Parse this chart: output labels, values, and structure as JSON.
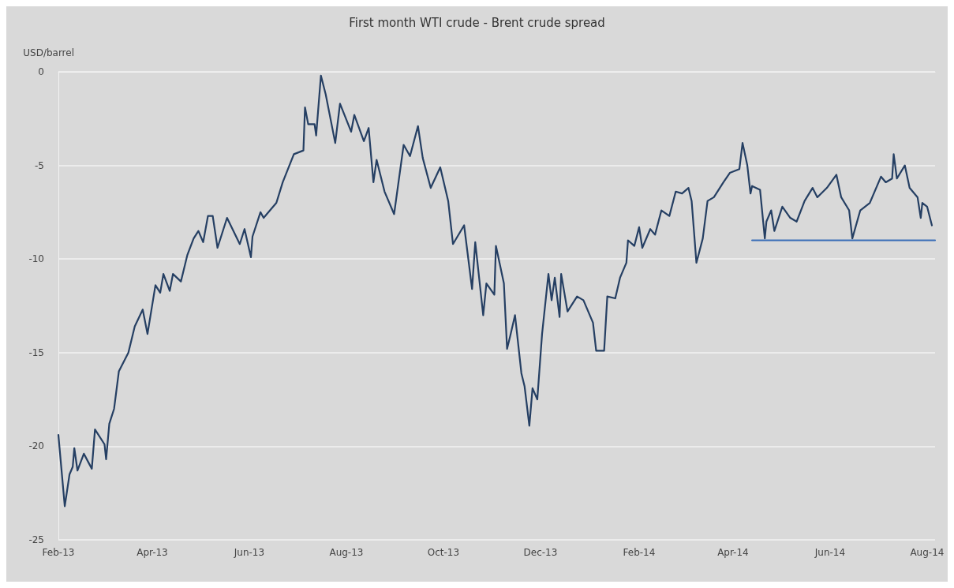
{
  "chart_data": {
    "type": "line",
    "title": "First month WTI crude - Brent crude spread",
    "ylabel": "USD/barrel",
    "xlim": [
      "2013-02-01",
      "2014-08-06"
    ],
    "xticks": [
      {
        "value": "2013-02-01",
        "label": "Feb-13"
      },
      {
        "value": "2013-04-01",
        "label": "Apr-13"
      },
      {
        "value": "2013-06-01",
        "label": "Jun-13"
      },
      {
        "value": "2013-08-01",
        "label": "Aug-13"
      },
      {
        "value": "2013-10-01",
        "label": "Oct-13"
      },
      {
        "value": "2013-12-01",
        "label": "Dec-13"
      },
      {
        "value": "2014-02-01",
        "label": "Feb-14"
      },
      {
        "value": "2014-04-01",
        "label": "Apr-14"
      },
      {
        "value": "2014-06-01",
        "label": "Jun-14"
      },
      {
        "value": "2014-08-01",
        "label": "Aug-14"
      }
    ],
    "ylim": [
      -25,
      0
    ],
    "yticks": [
      -25,
      -20,
      -15,
      -10,
      -5,
      0
    ],
    "grid": "y",
    "marker": "none",
    "line_style": "solid",
    "series": [
      {
        "color": "#253f63",
        "x": [
          "2013-02-01",
          "2013-02-05",
          "2013-02-08",
          "2013-02-10",
          "2013-02-11",
          "2013-02-13",
          "2013-02-17",
          "2013-02-22",
          "2013-02-24",
          "2013-03-02",
          "2013-03-03",
          "2013-03-05",
          "2013-03-08",
          "2013-03-11",
          "2013-03-17",
          "2013-03-21",
          "2013-03-26",
          "2013-03-29",
          "2013-04-03",
          "2013-04-06",
          "2013-04-08",
          "2013-04-12",
          "2013-04-14",
          "2013-04-19",
          "2013-04-23",
          "2013-04-27",
          "2013-04-30",
          "2013-05-03",
          "2013-05-06",
          "2013-05-09",
          "2013-05-12",
          "2013-05-18",
          "2013-05-26",
          "2013-05-29",
          "2013-06-02",
          "2013-06-03",
          "2013-06-08",
          "2013-06-10",
          "2013-06-18",
          "2013-06-22",
          "2013-06-29",
          "2013-07-05",
          "2013-07-06",
          "2013-07-08",
          "2013-07-12",
          "2013-07-13",
          "2013-07-16",
          "2013-07-19",
          "2013-07-25",
          "2013-07-28",
          "2013-08-04",
          "2013-08-06",
          "2013-08-12",
          "2013-08-15",
          "2013-08-18",
          "2013-08-20",
          "2013-08-25",
          "2013-08-31",
          "2013-09-06",
          "2013-09-10",
          "2013-09-15",
          "2013-09-18",
          "2013-09-23",
          "2013-09-29",
          "2013-10-04",
          "2013-10-07",
          "2013-10-14",
          "2013-10-19",
          "2013-10-21",
          "2013-10-26",
          "2013-10-28",
          "2013-11-02",
          "2013-11-03",
          "2013-11-08",
          "2013-11-10",
          "2013-11-12",
          "2013-11-15",
          "2013-11-19",
          "2013-11-21",
          "2013-11-24",
          "2013-11-26",
          "2013-11-29",
          "2013-12-02",
          "2013-12-06",
          "2013-12-08",
          "2013-12-10",
          "2013-12-13",
          "2013-12-14",
          "2013-12-18",
          "2013-12-24",
          "2013-12-28",
          "2014-01-03",
          "2014-01-05",
          "2014-01-10",
          "2014-01-12",
          "2014-01-17",
          "2014-01-20",
          "2014-01-24",
          "2014-01-25",
          "2014-01-29",
          "2014-02-01",
          "2014-02-03",
          "2014-02-08",
          "2014-02-11",
          "2014-02-15",
          "2014-02-20",
          "2014-02-24",
          "2014-02-28",
          "2014-03-04",
          "2014-03-06",
          "2014-03-09",
          "2014-03-13",
          "2014-03-16",
          "2014-03-20",
          "2014-03-26",
          "2014-03-30",
          "2014-04-05",
          "2014-04-07",
          "2014-04-10",
          "2014-04-12",
          "2014-04-13",
          "2014-04-18",
          "2014-04-21",
          "2014-04-22",
          "2014-04-25",
          "2014-04-27",
          "2014-05-02",
          "2014-05-07",
          "2014-05-11",
          "2014-05-16",
          "2014-05-21",
          "2014-05-24",
          "2014-05-30",
          "2014-06-05",
          "2014-06-08",
          "2014-06-13",
          "2014-06-15",
          "2014-06-20",
          "2014-06-26",
          "2014-07-03",
          "2014-07-06",
          "2014-07-10",
          "2014-07-11",
          "2014-07-13",
          "2014-07-18",
          "2014-07-21",
          "2014-07-26",
          "2014-07-28",
          "2014-07-29",
          "2014-08-01",
          "2014-08-04"
        ],
        "values": [
          -19.4,
          -23.2,
          -21.5,
          -21.1,
          -20.1,
          -21.3,
          -20.4,
          -21.2,
          -19.1,
          -19.9,
          -20.7,
          -18.8,
          -18.0,
          -16.0,
          -15.0,
          -13.6,
          -12.7,
          -14.0,
          -11.4,
          -11.8,
          -10.8,
          -11.7,
          -10.8,
          -11.2,
          -9.8,
          -8.9,
          -8.5,
          -9.1,
          -7.7,
          -7.7,
          -9.4,
          -7.8,
          -9.2,
          -8.4,
          -9.9,
          -8.8,
          -7.5,
          -7.8,
          -7.0,
          -5.9,
          -4.4,
          -4.2,
          -1.9,
          -2.8,
          -2.8,
          -3.4,
          -0.2,
          -1.2,
          -3.8,
          -1.7,
          -3.2,
          -2.3,
          -3.7,
          -3.0,
          -5.9,
          -4.7,
          -6.4,
          -7.6,
          -3.9,
          -4.5,
          -2.9,
          -4.6,
          -6.2,
          -5.1,
          -6.9,
          -9.2,
          -8.2,
          -11.6,
          -9.1,
          -13.0,
          -11.3,
          -11.9,
          -9.3,
          -11.3,
          -14.8,
          -14.1,
          -13.0,
          -16.1,
          -16.8,
          -18.9,
          -16.9,
          -17.5,
          -14.0,
          -10.8,
          -12.2,
          -11.0,
          -13.1,
          -10.8,
          -12.8,
          -12.0,
          -12.2,
          -13.4,
          -14.9,
          -14.9,
          -12.0,
          -12.1,
          -11.0,
          -10.2,
          -9.0,
          -9.3,
          -8.3,
          -9.4,
          -8.4,
          -8.7,
          -7.4,
          -7.7,
          -6.4,
          -6.5,
          -6.2,
          -6.9,
          -10.2,
          -8.9,
          -6.9,
          -6.7,
          -5.9,
          -5.4,
          -5.2,
          -3.8,
          -5.0,
          -6.5,
          -6.1,
          -6.3,
          -8.9,
          -8.0,
          -7.4,
          -8.5,
          -7.2,
          -7.8,
          -8.0,
          -6.9,
          -6.2,
          -6.7,
          -6.2,
          -5.5,
          -6.7,
          -7.4,
          -8.9,
          -7.4,
          -7.0,
          -5.6,
          -5.9,
          -5.7,
          -4.4,
          -5.7,
          -5.0,
          -6.2,
          -6.7,
          -7.8,
          -7.0,
          -7.2,
          -8.2
        ]
      },
      {
        "color": "#3b6fb8",
        "x": [
          "2014-04-13",
          "2014-08-06"
        ],
        "values": [
          -9,
          -9
        ]
      }
    ]
  }
}
